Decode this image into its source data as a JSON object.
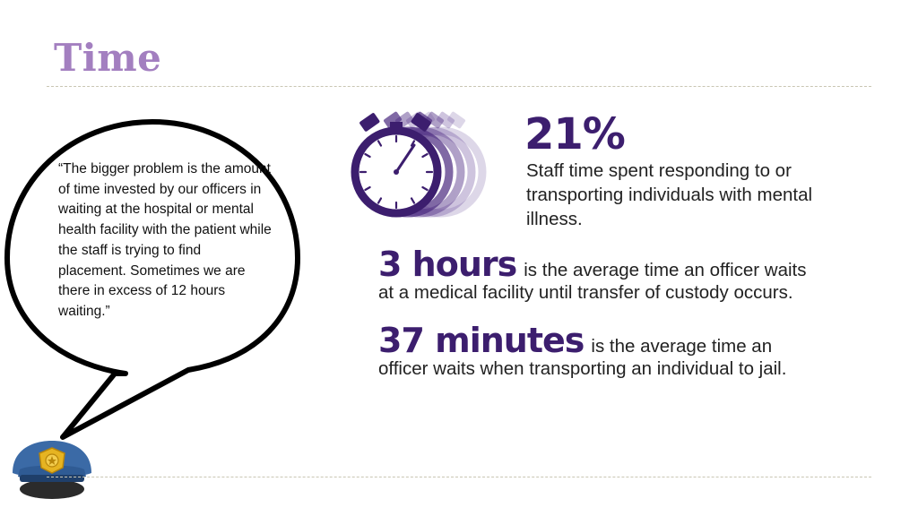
{
  "title": "Time",
  "quote": "“The bigger problem is the amount of time invested by our officers in waiting at the hospital or mental health facility with the patient while the staff is trying to find placement. Sometimes we are there in excess of 12 hours waiting.”",
  "stat1": {
    "value": "21%",
    "text": "Staff time spent responding to or transporting individuals with mental illness."
  },
  "stat2": {
    "value": "3 hours",
    "line1": "is the average time an officer waits",
    "line2": "at a medical facility until transfer of custody occurs."
  },
  "stat3": {
    "value": "37 minutes",
    "line1": "is the average time an",
    "line2": "officer waits when transporting an individual to jail."
  },
  "colors": {
    "title": "#a37fc0",
    "accent": "#3c1e6e",
    "divider": "#c9c6b3"
  },
  "icons": [
    "speech-bubble-icon",
    "police-cap-icon",
    "stopwatch-icon"
  ]
}
